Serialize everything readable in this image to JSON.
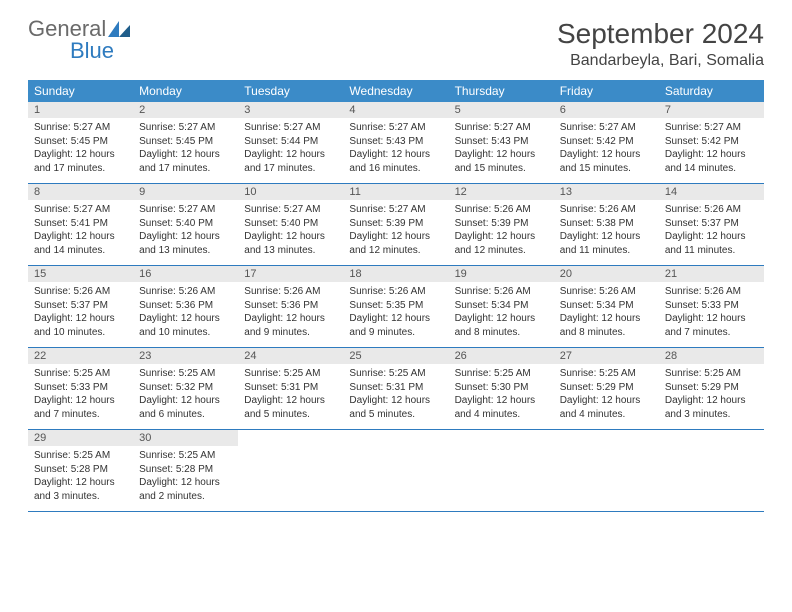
{
  "logo": {
    "top": "General",
    "bottom": "Blue"
  },
  "header": {
    "title": "September 2024",
    "location": "Bandarbeyla, Bari, Somalia"
  },
  "colors": {
    "headerBar": "#3b8bc8",
    "dayNumBg": "#e9e9e9",
    "ruleLine": "#2e7bbf",
    "logoBlue": "#2e7bbf",
    "logoGray": "#6a6a6a"
  },
  "dow": [
    "Sunday",
    "Monday",
    "Tuesday",
    "Wednesday",
    "Thursday",
    "Friday",
    "Saturday"
  ],
  "weeks": [
    [
      {
        "n": "1",
        "sr": "Sunrise: 5:27 AM",
        "ss": "Sunset: 5:45 PM",
        "d1": "Daylight: 12 hours",
        "d2": "and 17 minutes."
      },
      {
        "n": "2",
        "sr": "Sunrise: 5:27 AM",
        "ss": "Sunset: 5:45 PM",
        "d1": "Daylight: 12 hours",
        "d2": "and 17 minutes."
      },
      {
        "n": "3",
        "sr": "Sunrise: 5:27 AM",
        "ss": "Sunset: 5:44 PM",
        "d1": "Daylight: 12 hours",
        "d2": "and 17 minutes."
      },
      {
        "n": "4",
        "sr": "Sunrise: 5:27 AM",
        "ss": "Sunset: 5:43 PM",
        "d1": "Daylight: 12 hours",
        "d2": "and 16 minutes."
      },
      {
        "n": "5",
        "sr": "Sunrise: 5:27 AM",
        "ss": "Sunset: 5:43 PM",
        "d1": "Daylight: 12 hours",
        "d2": "and 15 minutes."
      },
      {
        "n": "6",
        "sr": "Sunrise: 5:27 AM",
        "ss": "Sunset: 5:42 PM",
        "d1": "Daylight: 12 hours",
        "d2": "and 15 minutes."
      },
      {
        "n": "7",
        "sr": "Sunrise: 5:27 AM",
        "ss": "Sunset: 5:42 PM",
        "d1": "Daylight: 12 hours",
        "d2": "and 14 minutes."
      }
    ],
    [
      {
        "n": "8",
        "sr": "Sunrise: 5:27 AM",
        "ss": "Sunset: 5:41 PM",
        "d1": "Daylight: 12 hours",
        "d2": "and 14 minutes."
      },
      {
        "n": "9",
        "sr": "Sunrise: 5:27 AM",
        "ss": "Sunset: 5:40 PM",
        "d1": "Daylight: 12 hours",
        "d2": "and 13 minutes."
      },
      {
        "n": "10",
        "sr": "Sunrise: 5:27 AM",
        "ss": "Sunset: 5:40 PM",
        "d1": "Daylight: 12 hours",
        "d2": "and 13 minutes."
      },
      {
        "n": "11",
        "sr": "Sunrise: 5:27 AM",
        "ss": "Sunset: 5:39 PM",
        "d1": "Daylight: 12 hours",
        "d2": "and 12 minutes."
      },
      {
        "n": "12",
        "sr": "Sunrise: 5:26 AM",
        "ss": "Sunset: 5:39 PM",
        "d1": "Daylight: 12 hours",
        "d2": "and 12 minutes."
      },
      {
        "n": "13",
        "sr": "Sunrise: 5:26 AM",
        "ss": "Sunset: 5:38 PM",
        "d1": "Daylight: 12 hours",
        "d2": "and 11 minutes."
      },
      {
        "n": "14",
        "sr": "Sunrise: 5:26 AM",
        "ss": "Sunset: 5:37 PM",
        "d1": "Daylight: 12 hours",
        "d2": "and 11 minutes."
      }
    ],
    [
      {
        "n": "15",
        "sr": "Sunrise: 5:26 AM",
        "ss": "Sunset: 5:37 PM",
        "d1": "Daylight: 12 hours",
        "d2": "and 10 minutes."
      },
      {
        "n": "16",
        "sr": "Sunrise: 5:26 AM",
        "ss": "Sunset: 5:36 PM",
        "d1": "Daylight: 12 hours",
        "d2": "and 10 minutes."
      },
      {
        "n": "17",
        "sr": "Sunrise: 5:26 AM",
        "ss": "Sunset: 5:36 PM",
        "d1": "Daylight: 12 hours",
        "d2": "and 9 minutes."
      },
      {
        "n": "18",
        "sr": "Sunrise: 5:26 AM",
        "ss": "Sunset: 5:35 PM",
        "d1": "Daylight: 12 hours",
        "d2": "and 9 minutes."
      },
      {
        "n": "19",
        "sr": "Sunrise: 5:26 AM",
        "ss": "Sunset: 5:34 PM",
        "d1": "Daylight: 12 hours",
        "d2": "and 8 minutes."
      },
      {
        "n": "20",
        "sr": "Sunrise: 5:26 AM",
        "ss": "Sunset: 5:34 PM",
        "d1": "Daylight: 12 hours",
        "d2": "and 8 minutes."
      },
      {
        "n": "21",
        "sr": "Sunrise: 5:26 AM",
        "ss": "Sunset: 5:33 PM",
        "d1": "Daylight: 12 hours",
        "d2": "and 7 minutes."
      }
    ],
    [
      {
        "n": "22",
        "sr": "Sunrise: 5:25 AM",
        "ss": "Sunset: 5:33 PM",
        "d1": "Daylight: 12 hours",
        "d2": "and 7 minutes."
      },
      {
        "n": "23",
        "sr": "Sunrise: 5:25 AM",
        "ss": "Sunset: 5:32 PM",
        "d1": "Daylight: 12 hours",
        "d2": "and 6 minutes."
      },
      {
        "n": "24",
        "sr": "Sunrise: 5:25 AM",
        "ss": "Sunset: 5:31 PM",
        "d1": "Daylight: 12 hours",
        "d2": "and 5 minutes."
      },
      {
        "n": "25",
        "sr": "Sunrise: 5:25 AM",
        "ss": "Sunset: 5:31 PM",
        "d1": "Daylight: 12 hours",
        "d2": "and 5 minutes."
      },
      {
        "n": "26",
        "sr": "Sunrise: 5:25 AM",
        "ss": "Sunset: 5:30 PM",
        "d1": "Daylight: 12 hours",
        "d2": "and 4 minutes."
      },
      {
        "n": "27",
        "sr": "Sunrise: 5:25 AM",
        "ss": "Sunset: 5:29 PM",
        "d1": "Daylight: 12 hours",
        "d2": "and 4 minutes."
      },
      {
        "n": "28",
        "sr": "Sunrise: 5:25 AM",
        "ss": "Sunset: 5:29 PM",
        "d1": "Daylight: 12 hours",
        "d2": "and 3 minutes."
      }
    ],
    [
      {
        "n": "29",
        "sr": "Sunrise: 5:25 AM",
        "ss": "Sunset: 5:28 PM",
        "d1": "Daylight: 12 hours",
        "d2": "and 3 minutes."
      },
      {
        "n": "30",
        "sr": "Sunrise: 5:25 AM",
        "ss": "Sunset: 5:28 PM",
        "d1": "Daylight: 12 hours",
        "d2": "and 2 minutes."
      },
      null,
      null,
      null,
      null,
      null
    ]
  ]
}
